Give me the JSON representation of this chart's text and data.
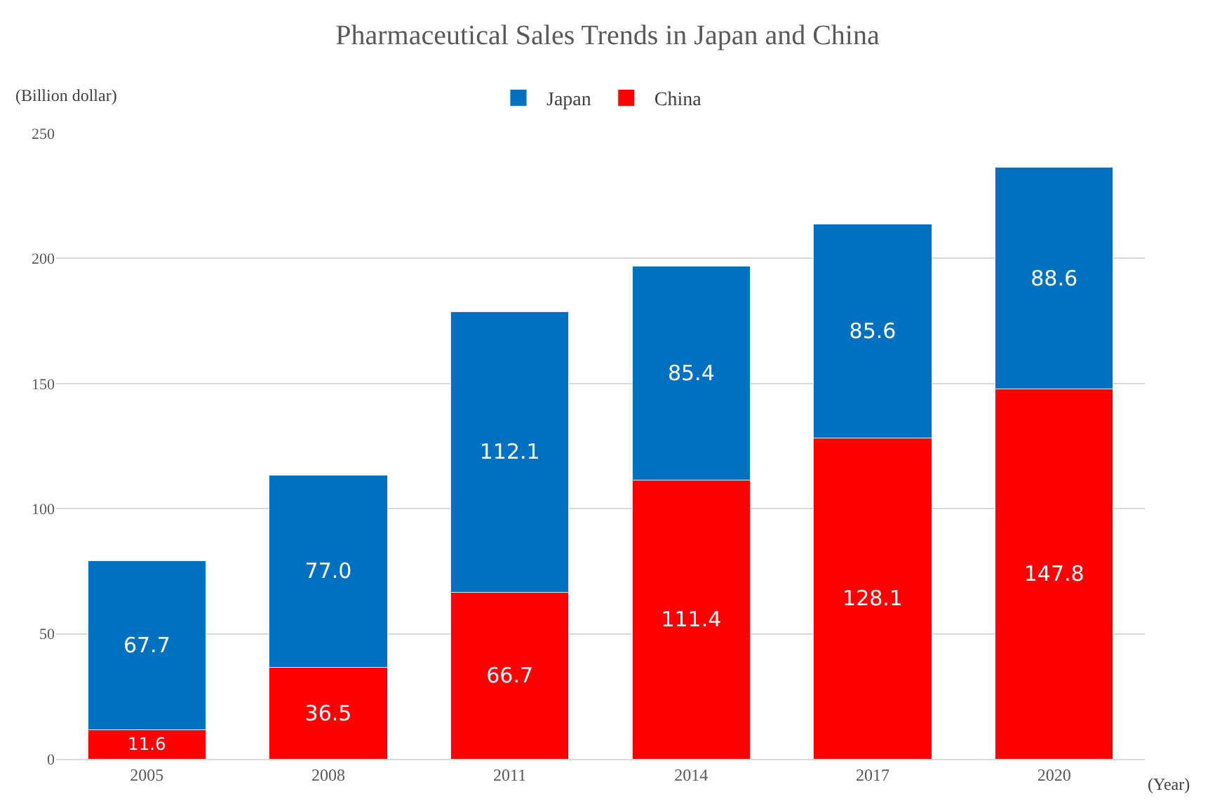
{
  "chart_data": {
    "type": "bar",
    "title": "Pharmaceutical Sales Trends in Japan and China",
    "xlabel": "(Year)",
    "ylabel": "(Billion dollar)",
    "categories": [
      "2005",
      "2008",
      "2011",
      "2014",
      "2017",
      "2020"
    ],
    "series": [
      {
        "name": "China",
        "color": "#ff0000",
        "values": [
          11.6,
          36.5,
          66.7,
          111.4,
          128.1,
          147.8
        ],
        "value_labels": [
          "11.6",
          "36.5",
          "66.7",
          "111.4",
          "128.1",
          "147.8"
        ]
      },
      {
        "name": "Japan",
        "color": "#0070c0",
        "values": [
          67.7,
          77.0,
          112.1,
          85.4,
          85.6,
          88.6
        ],
        "value_labels": [
          "67.7",
          "77.0",
          "112.1",
          "85.4",
          "85.6",
          "88.6"
        ]
      }
    ],
    "stacked": true,
    "ylim": [
      0,
      250
    ],
    "yticks": [
      0,
      50,
      100,
      150,
      200,
      250
    ],
    "grid": "y",
    "legend": "top"
  }
}
